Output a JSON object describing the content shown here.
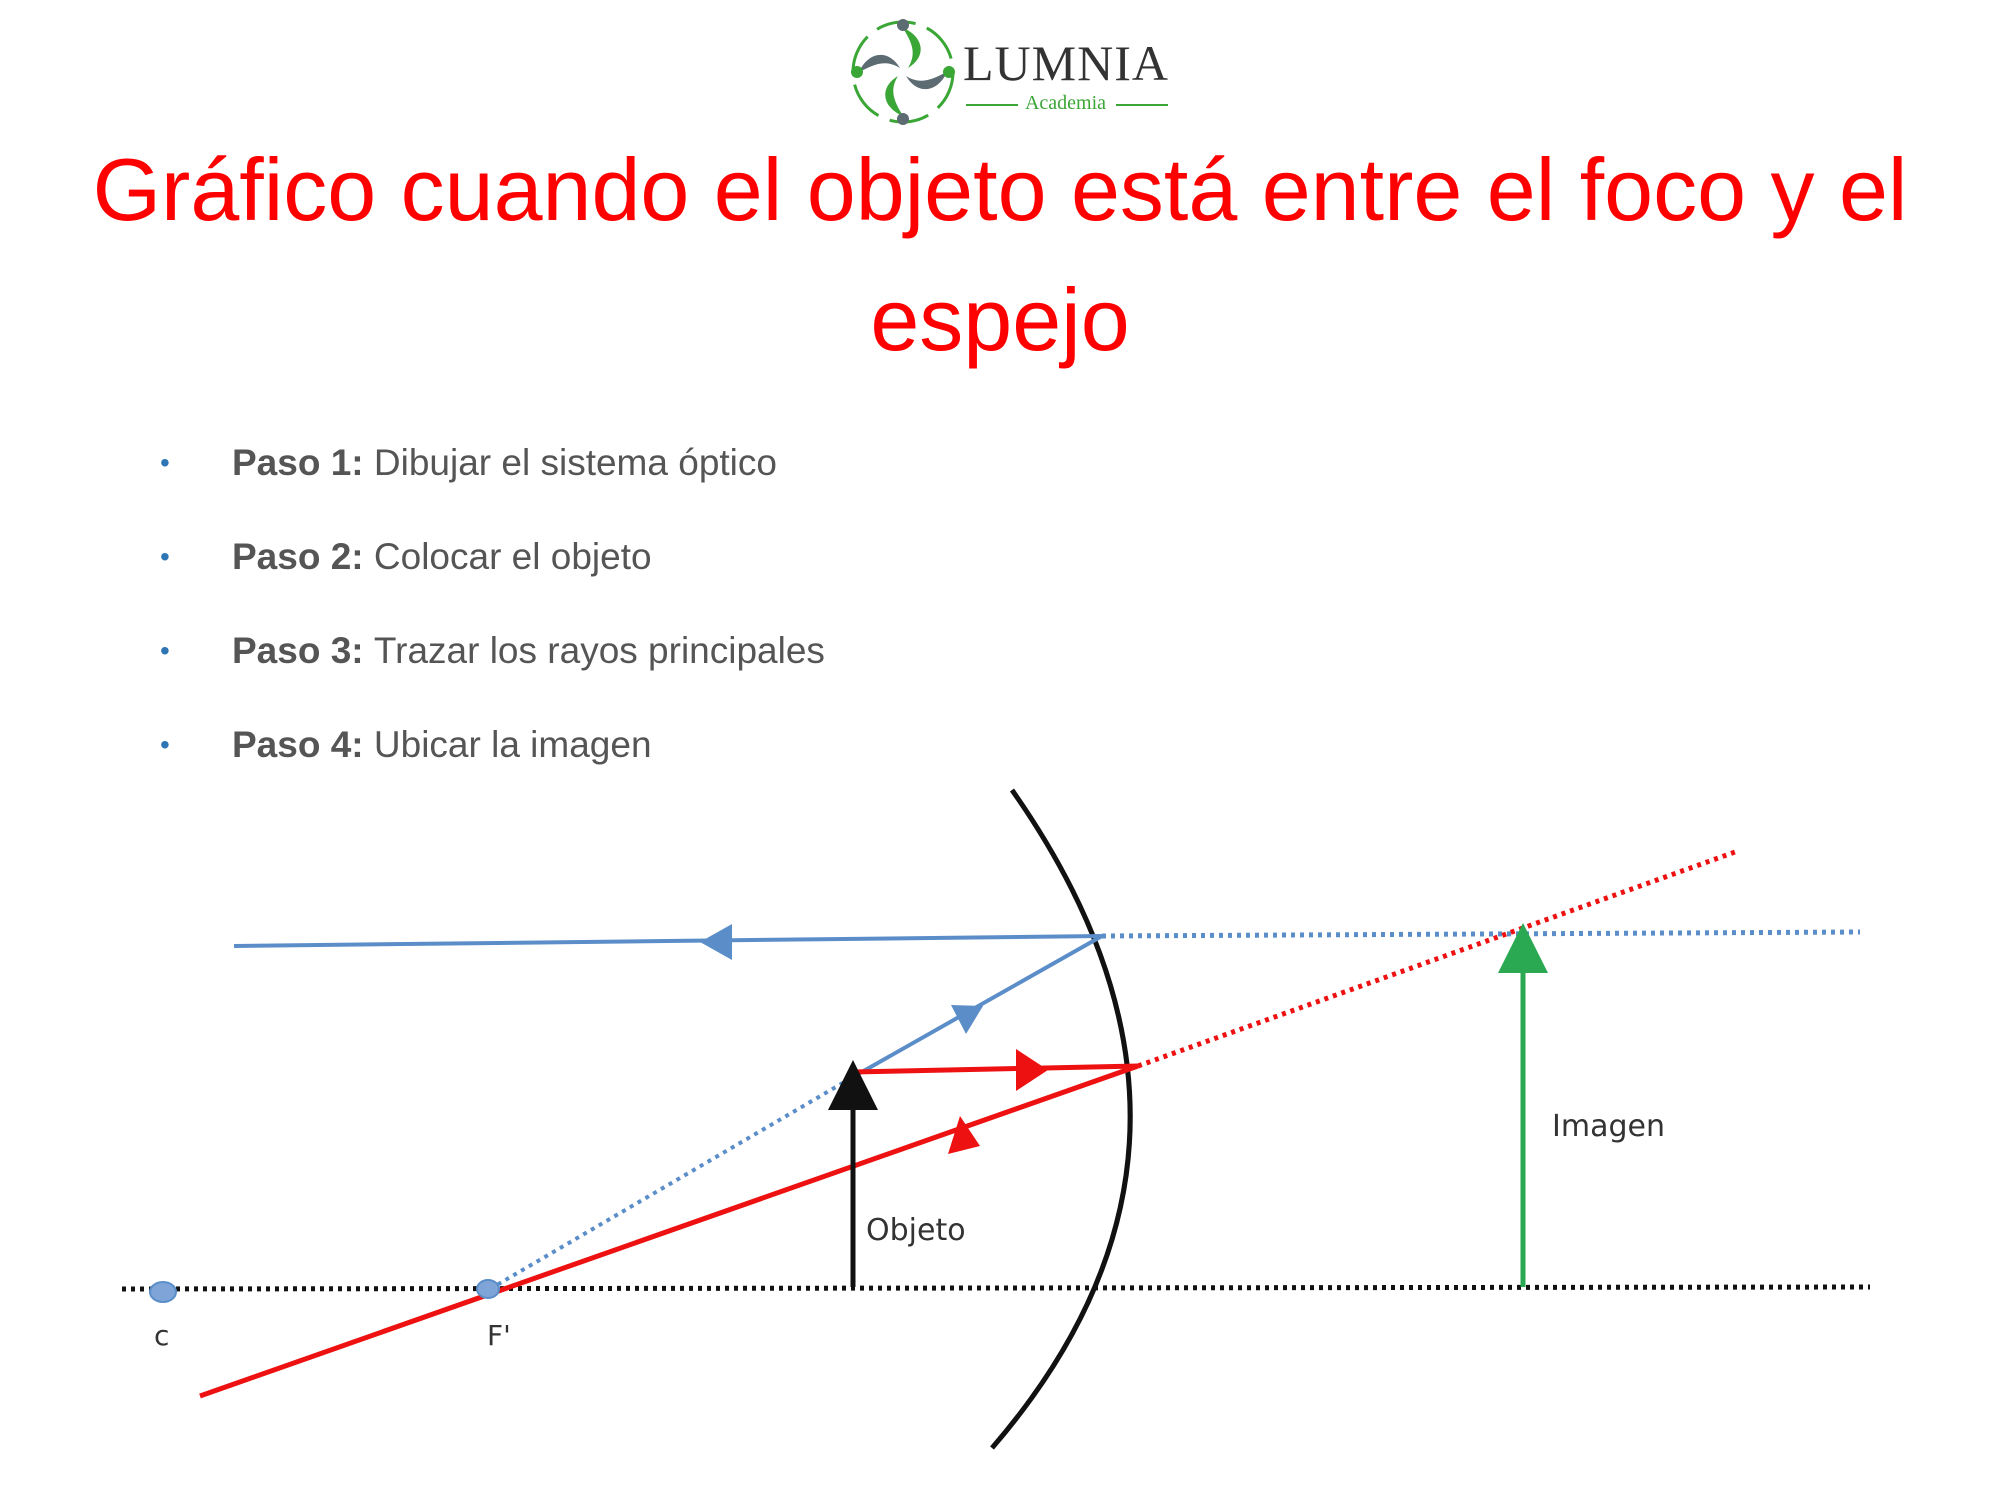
{
  "logo": {
    "name": "LUMNIA",
    "subtitle": "Academia"
  },
  "title": "Gráfico cuando el objeto está entre el foco y el espejo",
  "steps": [
    {
      "label": "Paso 1:",
      "text": "Dibujar el sistema óptico"
    },
    {
      "label": "Paso 2:",
      "text": "Colocar el objeto"
    },
    {
      "label": "Paso 3:",
      "text": "Trazar los rayos principales"
    },
    {
      "label": "Paso 4:",
      "text": "Ubicar la imagen"
    }
  ],
  "diagram": {
    "labels": {
      "center": "c",
      "focus": "F'",
      "object": "Objeto",
      "image": "Imagen"
    },
    "colors": {
      "ray_blue": "#5b8ec9",
      "ray_red": "#ee1111",
      "image_arrow": "#2aa952",
      "axis": "#111111",
      "point": "#7ea4d8"
    }
  },
  "colors": {
    "title": "#ff0000",
    "bullet": "#2e75b6",
    "logo_green": "#3aa635"
  }
}
